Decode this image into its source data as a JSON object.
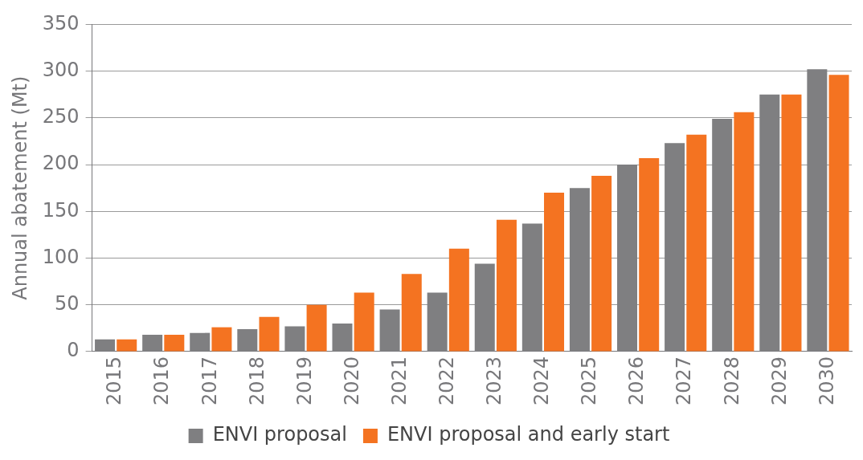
{
  "chart_data": {
    "type": "bar",
    "ylabel": "Annual abatement (Mt)",
    "categories": [
      "2015",
      "2016",
      "2017",
      "2018",
      "2019",
      "2020",
      "2021",
      "2022",
      "2023",
      "2024",
      "2025",
      "2026",
      "2027",
      "2028",
      "2029",
      "2030"
    ],
    "series": [
      {
        "name": "ENVI proposal",
        "color": "#7f7f81",
        "values": [
          13,
          18,
          20,
          24,
          27,
          30,
          45,
          63,
          94,
          137,
          175,
          200,
          223,
          249,
          275,
          302
        ]
      },
      {
        "name": "ENVI proposal and early start",
        "color": "#f47321",
        "values": [
          13,
          18,
          26,
          37,
          50,
          63,
          83,
          110,
          141,
          170,
          188,
          207,
          232,
          256,
          275,
          296
        ]
      }
    ],
    "ylim": [
      0,
      350
    ],
    "yticks": [
      0,
      50,
      100,
      150,
      200,
      250,
      300,
      350
    ],
    "grid": "y",
    "legend": "bottom"
  }
}
